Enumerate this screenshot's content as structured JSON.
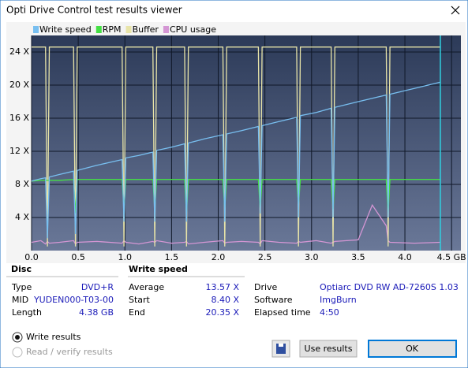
{
  "window": {
    "title": "Opti Drive Control test results viewer"
  },
  "chart_data": {
    "type": "line",
    "x": [
      0,
      0.1,
      0.15,
      0.17,
      0.19,
      0.3,
      0.45,
      0.47,
      0.49,
      0.7,
      0.97,
      0.99,
      1.01,
      1.15,
      1.3,
      1.32,
      1.34,
      1.5,
      1.64,
      1.66,
      1.68,
      1.85,
      2.05,
      2.07,
      2.09,
      2.25,
      2.43,
      2.45,
      2.47,
      2.65,
      2.84,
      2.86,
      2.88,
      3.05,
      3.21,
      3.23,
      3.25,
      3.5,
      3.65,
      3.8,
      3.82,
      3.84,
      4.1,
      4.38
    ],
    "series": [
      {
        "name": "Write speed",
        "color": "#78bff0",
        "values": [
          8.4,
          8.7,
          8.8,
          1.5,
          8.9,
          9.2,
          9.6,
          2.0,
          9.7,
          10.3,
          11.0,
          3.5,
          11.2,
          11.5,
          11.9,
          3.5,
          12.1,
          12.5,
          12.9,
          3.5,
          13.0,
          13.5,
          14.0,
          3.5,
          14.1,
          14.5,
          15.0,
          4.5,
          15.1,
          15.6,
          16.1,
          4.0,
          16.3,
          16.7,
          17.2,
          4.0,
          17.3,
          18.0,
          18.4,
          18.8,
          4.0,
          18.9,
          19.6,
          20.35
        ]
      },
      {
        "name": "RPM",
        "color": "#44e044",
        "values": [
          8.4,
          8.5,
          8.5,
          8.5,
          8.5,
          8.5,
          8.6,
          4.5,
          8.6,
          8.6,
          8.6,
          5.0,
          8.6,
          8.6,
          8.6,
          5.0,
          8.6,
          8.6,
          8.6,
          4.5,
          8.6,
          8.6,
          8.6,
          5.0,
          8.6,
          8.6,
          8.6,
          5.0,
          8.6,
          8.6,
          8.6,
          5.5,
          8.6,
          8.6,
          8.6,
          5.0,
          8.6,
          8.6,
          8.6,
          8.6,
          4.5,
          8.6,
          8.6,
          8.6
        ]
      },
      {
        "name": "Buffer",
        "color": "#e8e4a8",
        "values": [
          24.6,
          24.6,
          24.6,
          0.5,
          24.6,
          24.6,
          24.6,
          0.5,
          24.6,
          24.6,
          24.6,
          0.5,
          24.6,
          24.6,
          24.6,
          0.5,
          24.6,
          24.6,
          24.6,
          0.5,
          24.6,
          24.6,
          24.6,
          0.5,
          24.6,
          24.6,
          24.6,
          0.5,
          24.6,
          24.6,
          24.6,
          0.5,
          24.6,
          24.6,
          24.6,
          0.5,
          24.6,
          24.6,
          24.6,
          24.6,
          0.5,
          24.6,
          24.6,
          24.6
        ]
      },
      {
        "name": "CPU usage",
        "color": "#d496d4",
        "values": [
          1.0,
          1.2,
          0.8,
          1.1,
          0.9,
          1.0,
          1.2,
          0.8,
          1.0,
          1.1,
          0.9,
          1.2,
          1.0,
          0.8,
          1.1,
          1.0,
          1.2,
          0.9,
          1.0,
          1.1,
          0.8,
          1.0,
          1.2,
          0.9,
          1.0,
          1.1,
          1.0,
          0.8,
          1.2,
          1.0,
          0.9,
          1.1,
          1.0,
          1.2,
          0.9,
          1.0,
          1.1,
          1.3,
          5.5,
          3.0,
          1.2,
          1.0,
          0.9,
          1.0
        ]
      }
    ],
    "xlim": [
      0,
      4.6
    ],
    "ylim": [
      0,
      26
    ],
    "xticks": [
      {
        "value": 0,
        "label": "0.0"
      },
      {
        "value": 0.5,
        "label": "0.5"
      },
      {
        "value": 1,
        "label": "1.0"
      },
      {
        "value": 1.5,
        "label": "1.5"
      },
      {
        "value": 2,
        "label": "2.0"
      },
      {
        "value": 2.5,
        "label": "2.5"
      },
      {
        "value": 3,
        "label": "3.0"
      },
      {
        "value": 3.5,
        "label": "3.5"
      },
      {
        "value": 4,
        "label": "4.0"
      },
      {
        "value": 4.5,
        "label": "4.5 GB"
      }
    ],
    "yticks": [
      {
        "value": 4,
        "label": "4 X"
      },
      {
        "value": 8,
        "label": "8 X"
      },
      {
        "value": 12,
        "label": "12 X"
      },
      {
        "value": 16,
        "label": "16 X"
      },
      {
        "value": 20,
        "label": "20 X"
      },
      {
        "value": 24,
        "label": "24 X"
      }
    ],
    "grid": true
  },
  "disc": {
    "header": "Disc",
    "rows": [
      [
        "Type",
        "DVD+R"
      ],
      [
        "MID",
        "YUDEN000-T03-00"
      ],
      [
        "Length",
        "4.38 GB"
      ]
    ]
  },
  "write_speed": {
    "header": "Write speed",
    "rows": [
      [
        "Average",
        "13.57 X"
      ],
      [
        "Start",
        "8.40 X"
      ],
      [
        "End",
        "20.35 X"
      ]
    ]
  },
  "drive": {
    "rows": [
      [
        "Drive",
        "Optiarc  DVD RW AD-7260S 1.03"
      ],
      [
        "Software",
        "ImgBurn"
      ],
      [
        "Elapsed time",
        "4:50"
      ]
    ]
  },
  "options": [
    "Write results",
    "Read / verify results"
  ],
  "buttons": [
    "Use results",
    "OK"
  ]
}
